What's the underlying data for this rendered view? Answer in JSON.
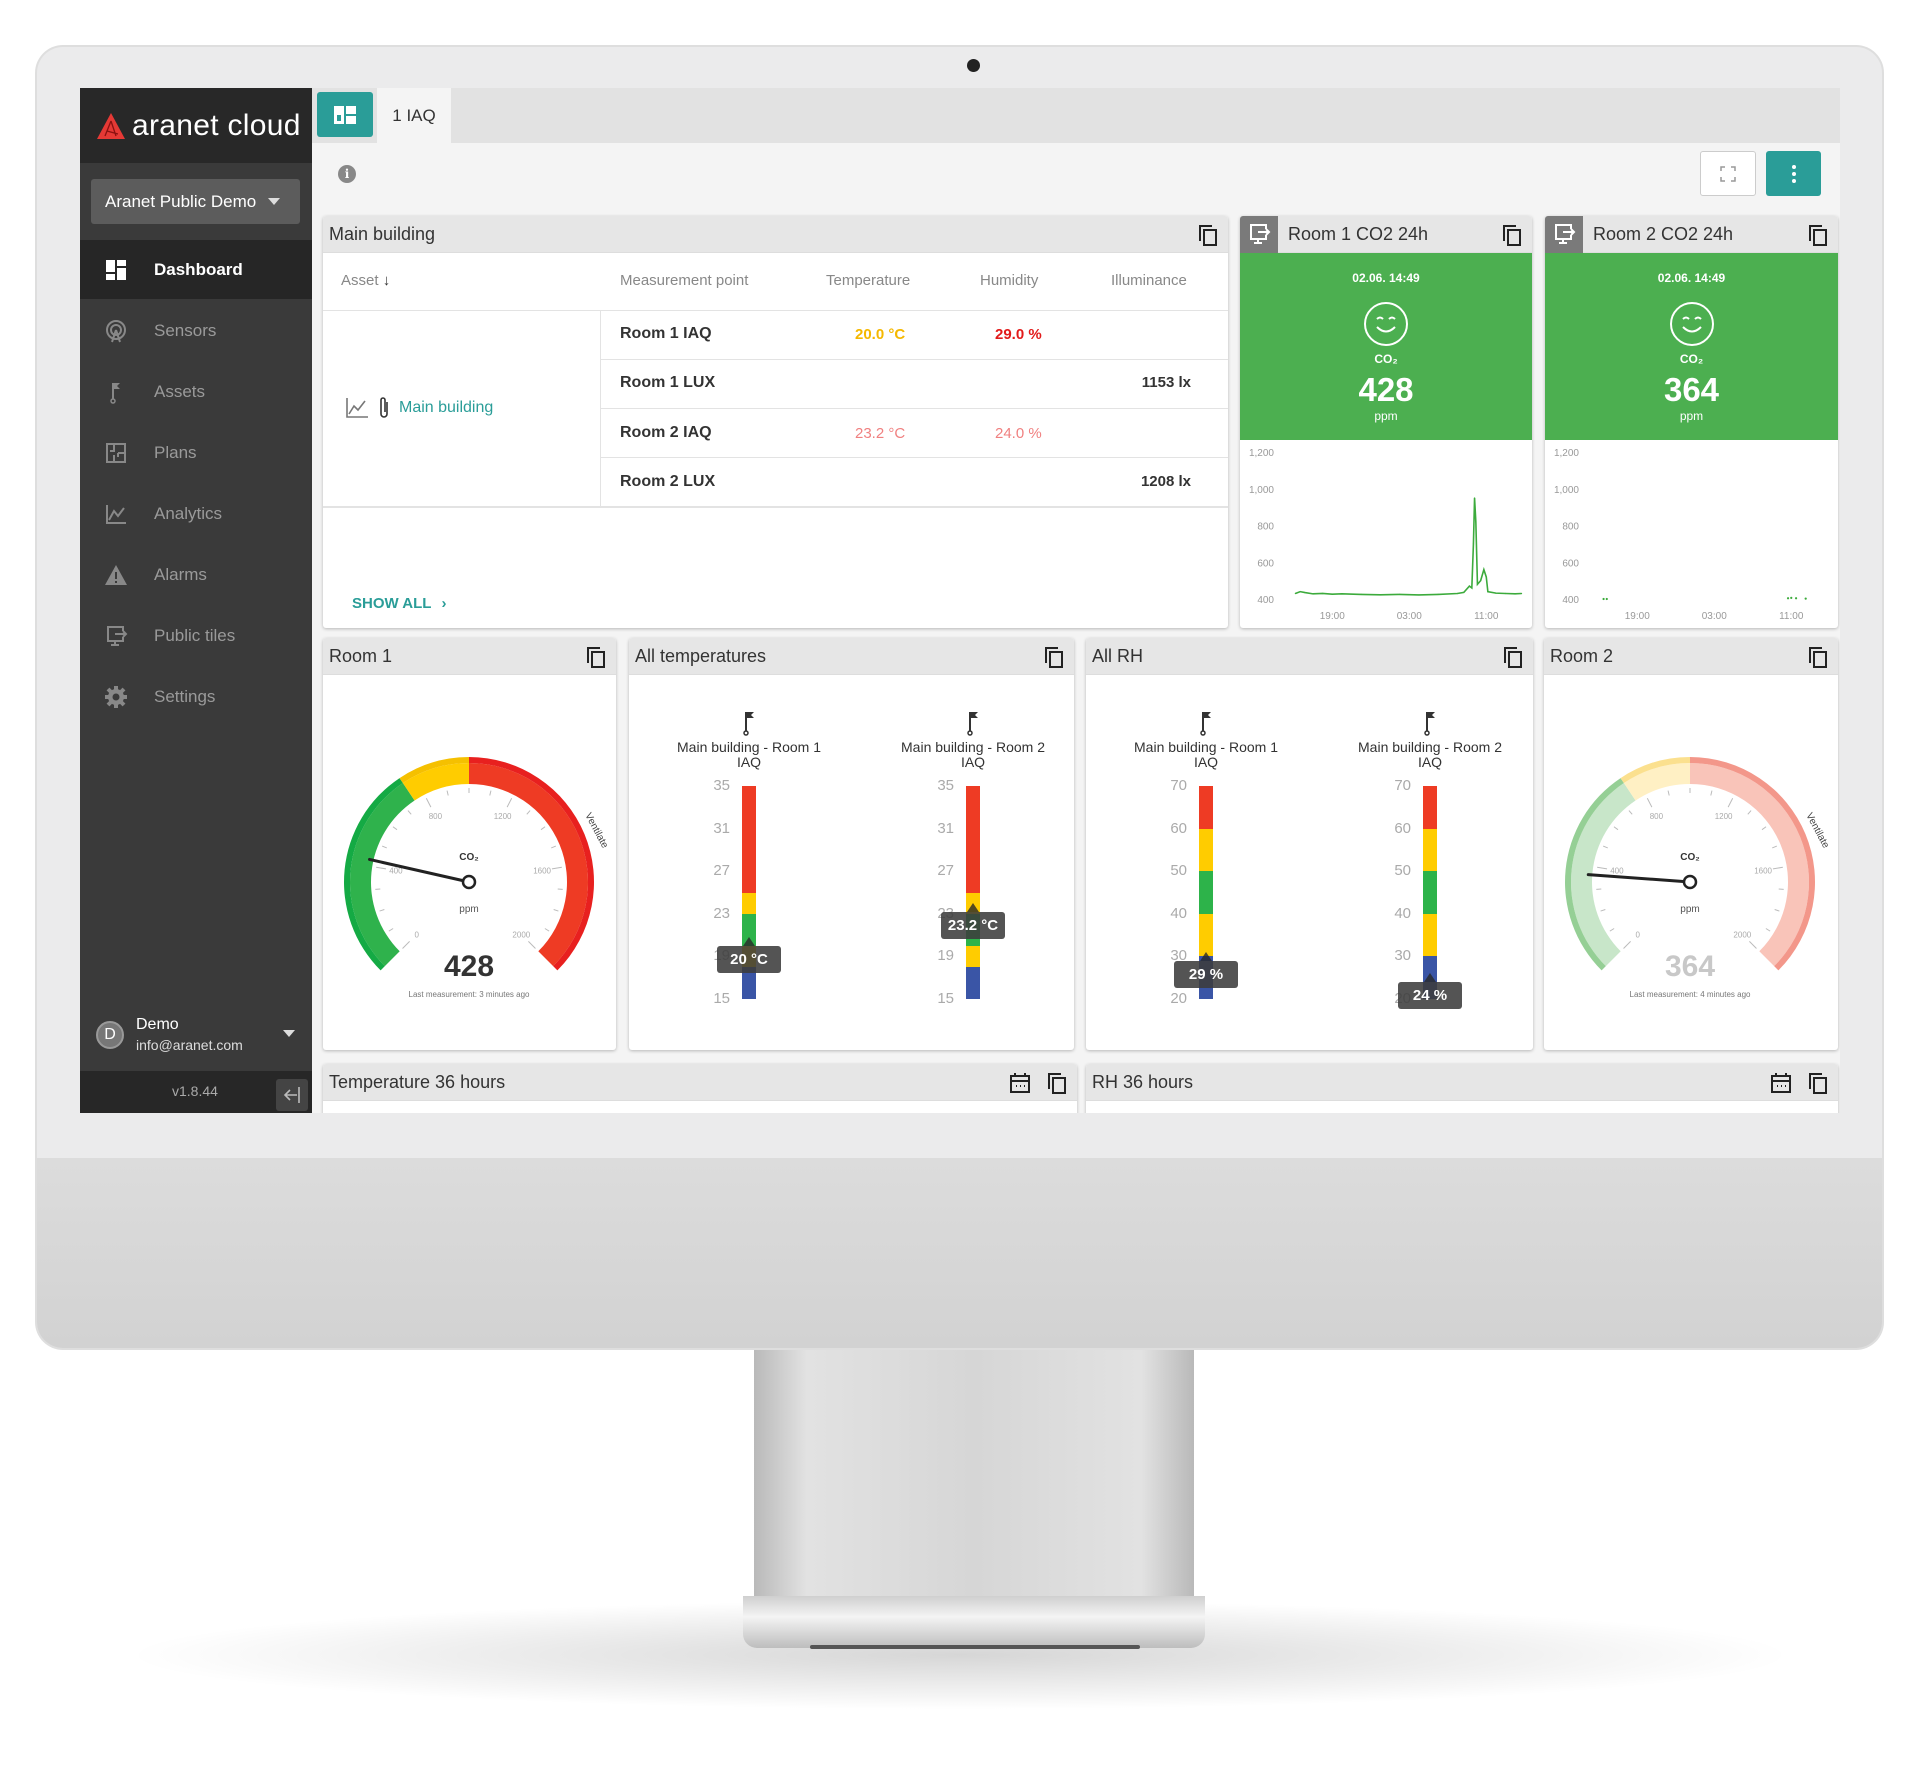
{
  "app": {
    "logo_text": "aranet cloud",
    "brand_color": "#e53935",
    "accent_color": "#2a9d98"
  },
  "sidebar": {
    "organization": "Aranet Public Demo",
    "items": [
      {
        "label": "Dashboard",
        "icon": "dashboard-icon",
        "active": true
      },
      {
        "label": "Sensors",
        "icon": "sensor-icon"
      },
      {
        "label": "Assets",
        "icon": "flag-icon"
      },
      {
        "label": "Plans",
        "icon": "floor-plan-icon"
      },
      {
        "label": "Analytics",
        "icon": "chart-line-icon"
      },
      {
        "label": "Alarms",
        "icon": "warning-icon"
      },
      {
        "label": "Public tiles",
        "icon": "public-tile-icon"
      },
      {
        "label": "Settings",
        "icon": "gear-icon"
      }
    ],
    "user": {
      "initial": "D",
      "name": "Demo",
      "email": "info@aranet.com"
    },
    "version": "v1.8.44"
  },
  "tabs": [
    {
      "label": "1 IAQ"
    }
  ],
  "main_building": {
    "title": "Main building",
    "columns": [
      "Asset",
      "Measurement point",
      "Temperature",
      "Humidity",
      "Illuminance"
    ],
    "asset": "Main building",
    "rows": [
      {
        "point": "Room 1 IAQ",
        "temperature": "20.0 °C",
        "temperature_color": "#f5b800",
        "humidity": "29.0 %",
        "humidity_color": "#e21b1b",
        "illuminance": ""
      },
      {
        "point": "Room 1 LUX",
        "temperature": "",
        "humidity": "",
        "illuminance": "1153 lx"
      },
      {
        "point": "Room 2 IAQ",
        "temperature": "23.2 °C",
        "temperature_color": "#f08080",
        "humidity": "24.0 %",
        "humidity_color": "#f08080",
        "illuminance": ""
      },
      {
        "point": "Room 2 LUX",
        "temperature": "",
        "humidity": "",
        "illuminance": "1208 lx"
      }
    ],
    "show_all": "SHOW ALL"
  },
  "co2_tiles": [
    {
      "title": "Room 1 CO2 24h",
      "date": "02.06. 14:49",
      "label": "CO₂",
      "value": "428",
      "unit": "ppm",
      "status_color": "#4caf50"
    },
    {
      "title": "Room 2 CO2 24h",
      "date": "02.06. 14:49",
      "label": "CO₂",
      "value": "364",
      "unit": "ppm",
      "status_color": "#4caf50"
    }
  ],
  "gauges": [
    {
      "title": "Room 1",
      "label": "CO₂",
      "unit": "ppm",
      "value": 428,
      "value_text": "428",
      "note": "Last measurement: 3 minutes ago",
      "zone_label": "Ventilate",
      "stale": false,
      "ticks": [
        "0",
        "400",
        "800",
        "1200",
        "1600",
        "2000"
      ]
    },
    {
      "title": "Room 2",
      "label": "CO₂",
      "unit": "ppm",
      "value": 364,
      "value_text": "364",
      "note": "Last measurement: 4 minutes ago",
      "zone_label": "Ventilate",
      "stale": true,
      "ticks": [
        "0",
        "400",
        "800",
        "1200",
        "1600",
        "2000"
      ]
    }
  ],
  "thermometers": [
    {
      "title": "All temperatures",
      "min": 15,
      "max": 35,
      "ticks": [
        "35",
        "31",
        "27",
        "23",
        "19",
        "15"
      ],
      "bands": [
        [
          15,
          18,
          "#3a55a6"
        ],
        [
          18,
          20,
          "#ffcc00"
        ],
        [
          20,
          23,
          "#2db34a"
        ],
        [
          23,
          25,
          "#ffcc00"
        ],
        [
          25,
          35,
          "#ee3b24"
        ]
      ],
      "items": [
        {
          "label1": "Main building - Room 1",
          "label2": "IAQ",
          "value": 20,
          "value_text": "20 °C"
        },
        {
          "label1": "Main building - Room 2",
          "label2": "IAQ",
          "value": 23.2,
          "value_text": "23.2 °C"
        }
      ]
    },
    {
      "title": "All RH",
      "min": 20,
      "max": 70,
      "ticks": [
        "70",
        "60",
        "50",
        "40",
        "30",
        "20"
      ],
      "bands": [
        [
          20,
          30,
          "#3a55a6"
        ],
        [
          30,
          40,
          "#ffcc00"
        ],
        [
          40,
          50,
          "#2db34a"
        ],
        [
          50,
          60,
          "#ffcc00"
        ],
        [
          60,
          70,
          "#ee3b24"
        ]
      ],
      "items": [
        {
          "label1": "Main building - Room 1",
          "label2": "IAQ",
          "value": 29,
          "value_text": "29 %"
        },
        {
          "label1": "Main building - Room 2",
          "label2": "IAQ",
          "value": 24,
          "value_text": "24 %"
        }
      ]
    }
  ],
  "bottom_tiles": [
    {
      "title": "Temperature 36 hours"
    },
    {
      "title": "RH 36 hours"
    }
  ],
  "chart_data": [
    {
      "type": "line",
      "title": "Room 1 CO2 24h",
      "ylim": [
        400,
        1200
      ],
      "yticks": [
        "1,200",
        "1,000",
        "800",
        "600",
        "400"
      ],
      "xticks": [
        "19:00",
        "03:00",
        "11:00"
      ],
      "x_range": [
        "14:49",
        "14:49"
      ],
      "values": [
        [
          "15:10",
          430
        ],
        [
          "15:40",
          440
        ],
        [
          "16:10",
          435
        ],
        [
          "17:00",
          428
        ],
        [
          "18:00",
          430
        ],
        [
          "19:00",
          426
        ],
        [
          "20:00",
          428
        ],
        [
          "22:00",
          425
        ],
        [
          "00:00",
          423
        ],
        [
          "02:00",
          425
        ],
        [
          "04:00",
          422
        ],
        [
          "06:00",
          425
        ],
        [
          "08:00",
          430
        ],
        [
          "08:40",
          436
        ],
        [
          "09:15",
          470
        ],
        [
          "09:30",
          460
        ],
        [
          "09:40",
          700
        ],
        [
          "09:47",
          950
        ],
        [
          "09:55",
          820
        ],
        [
          "10:05",
          480
        ],
        [
          "10:25",
          500
        ],
        [
          "10:45",
          560
        ],
        [
          "11:00",
          520
        ],
        [
          "11:10",
          440
        ],
        [
          "12:00",
          432
        ],
        [
          "13:00",
          430
        ],
        [
          "14:00",
          428
        ],
        [
          "14:40",
          430
        ]
      ]
    },
    {
      "type": "line",
      "title": "Room 2 CO2 24h",
      "ylim": [
        400,
        1200
      ],
      "yticks": [
        "1,200",
        "1,000",
        "800",
        "600",
        "400"
      ],
      "xticks": [
        "19:00",
        "03:00",
        "11:00"
      ],
      "x_range": [
        "14:49",
        "14:49"
      ],
      "values": [
        [
          "15:30",
          400
        ],
        [
          "15:50",
          400
        ],
        [
          "10:40",
          404
        ],
        [
          "11:00",
          406
        ],
        [
          "11:30",
          404
        ],
        [
          "12:30",
          402
        ]
      ]
    }
  ]
}
